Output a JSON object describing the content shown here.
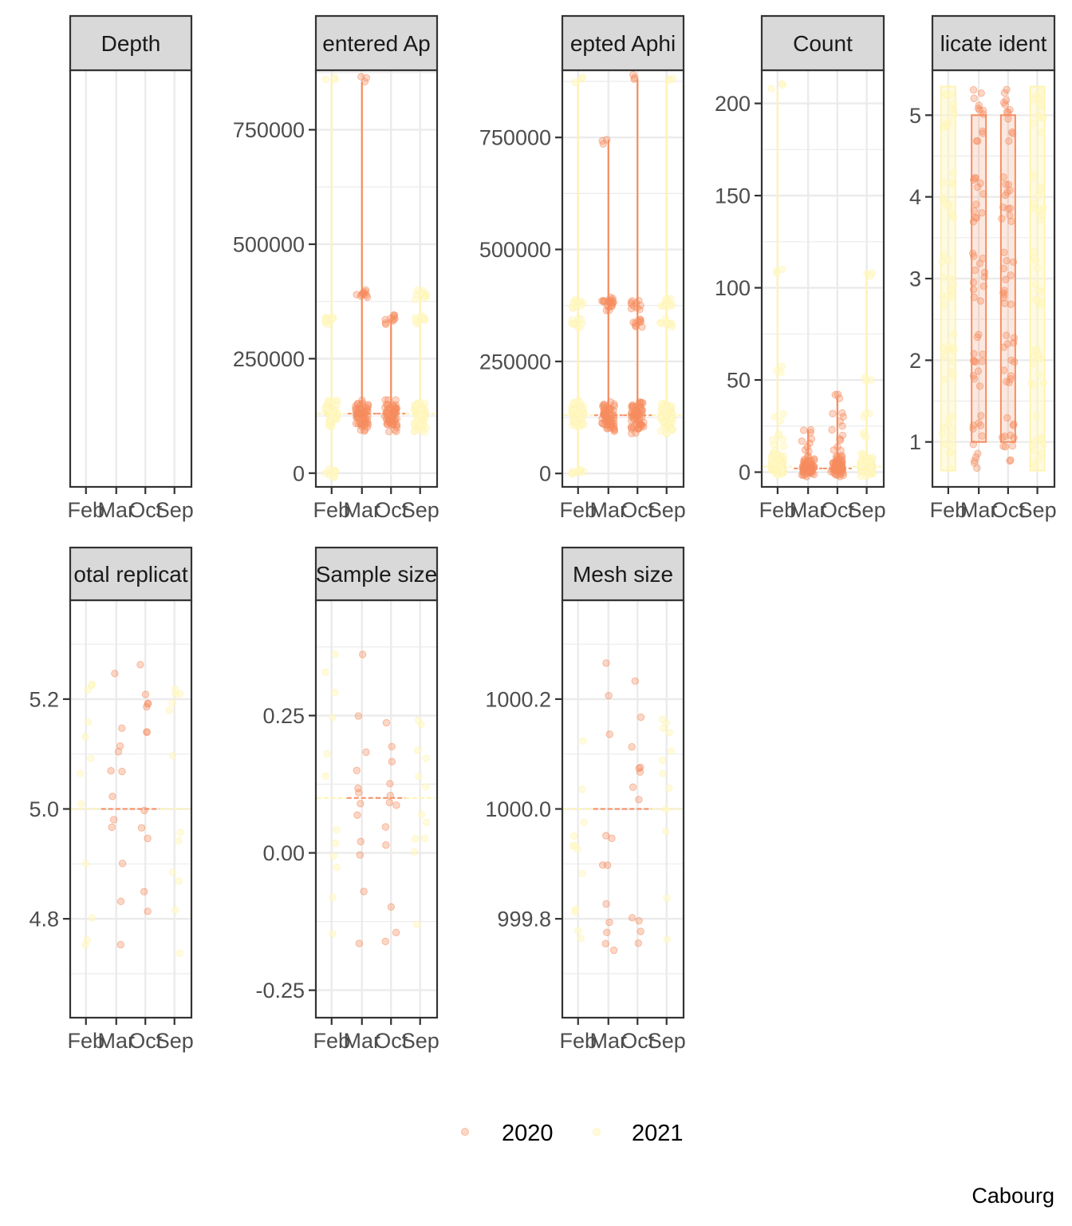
{
  "chart_data": {
    "type": "scatter",
    "layout": "faceted jitter + violin panels",
    "caption": "Cabourg",
    "legend": {
      "position": "bottom",
      "entries": [
        {
          "label": "2020",
          "color": "#f68d5f"
        },
        {
          "label": "2021",
          "color": "#fff8c4"
        }
      ]
    },
    "x_categories": [
      "Feb",
      "Mar",
      "Oct",
      "Sep"
    ],
    "x_tick_labels": [
      "Feb",
      "Mar",
      "Oct",
      "Sep"
    ],
    "category_year": [
      "2021",
      "2020",
      "2020",
      "2021"
    ],
    "colors": {
      "2020": "#f68d5f",
      "2021": "#fff8c4",
      "grid": "#ebebeb",
      "strip_bg": "#d9d9d9",
      "border": "#333333"
    },
    "panels": [
      {
        "strip": "Depth",
        "row": 0,
        "col": 0,
        "yticks": [],
        "ylim": [
          0,
          1
        ],
        "empty": true
      },
      {
        "strip": "entered Ap",
        "row": 0,
        "col": 1,
        "ylim": [
          -30000,
          880000
        ],
        "yticks": [
          0,
          250000,
          500000,
          750000
        ],
        "ytick_labels": [
          "0",
          "250000",
          "500000",
          "750000"
        ],
        "y_minor": [
          125000,
          375000,
          625000,
          875000
        ],
        "median": [
          130000,
          130000,
          130000,
          130000
        ],
        "range": [
          [
            0,
            860000
          ],
          [
            100000,
            855000
          ],
          [
            100000,
            335000
          ],
          [
            100000,
            390000
          ]
        ],
        "violin": "line",
        "point_values": [
          [
            0,
            110000,
            125000,
            130000,
            140000,
            150000,
            330000,
            860000
          ],
          [
            100000,
            110000,
            125000,
            130000,
            140000,
            150000,
            390000,
            855000
          ],
          [
            100000,
            110000,
            125000,
            130000,
            140000,
            150000,
            335000
          ],
          [
            100000,
            110000,
            125000,
            130000,
            140000,
            150000,
            335000,
            390000
          ]
        ]
      },
      {
        "strip": "epted Aphi",
        "row": 0,
        "col": 2,
        "ylim": [
          -30000,
          900000
        ],
        "yticks": [
          0,
          250000,
          500000,
          750000
        ],
        "ytick_labels": [
          "0",
          "250000",
          "500000",
          "750000"
        ],
        "y_minor": [
          125000,
          375000,
          625000,
          875000
        ],
        "median": [
          130000,
          130000,
          130000,
          130000
        ],
        "range": [
          [
            0,
            880000
          ],
          [
            100000,
            745000
          ],
          [
            100000,
            880000
          ],
          [
            100000,
            880000
          ]
        ],
        "violin": "line",
        "point_values": [
          [
            0,
            110000,
            125000,
            130000,
            140000,
            150000,
            335000,
            380000,
            880000
          ],
          [
            100000,
            110000,
            125000,
            130000,
            140000,
            150000,
            375000,
            385000,
            745000
          ],
          [
            100000,
            110000,
            125000,
            130000,
            140000,
            150000,
            335000,
            375000,
            880000
          ],
          [
            100000,
            110000,
            125000,
            130000,
            140000,
            150000,
            335000,
            380000,
            880000
          ]
        ]
      },
      {
        "strip": "Count",
        "row": 0,
        "col": 3,
        "ylim": [
          -8,
          218
        ],
        "yticks": [
          0,
          50,
          100,
          150,
          200
        ],
        "ytick_labels": [
          "0",
          "50",
          "100",
          "150",
          "200"
        ],
        "y_minor": [
          25,
          75,
          125,
          175
        ],
        "median": [
          3,
          2,
          2,
          3
        ],
        "range": [
          [
            0,
            208
          ],
          [
            0,
            23
          ],
          [
            0,
            40
          ],
          [
            0,
            108
          ]
        ],
        "violin": "line",
        "point_values": [
          [
            0,
            1,
            2,
            3,
            4,
            5,
            6,
            8,
            10,
            15,
            20,
            30,
            55,
            110,
            208
          ],
          [
            0,
            1,
            2,
            3,
            4,
            5,
            8,
            12,
            18,
            23
          ],
          [
            0,
            1,
            2,
            3,
            4,
            6,
            9,
            12,
            18,
            25,
            30,
            40
          ],
          [
            0,
            1,
            2,
            3,
            4,
            5,
            6,
            10,
            20,
            30,
            50,
            108
          ]
        ]
      },
      {
        "strip": "licate ident",
        "row": 0,
        "col": 4,
        "ylim": [
          0.45,
          5.55
        ],
        "yticks": [
          1,
          2,
          3,
          4,
          5
        ],
        "ytick_labels": [
          "1",
          "2",
          "3",
          "4",
          "5"
        ],
        "y_minor": [
          1.5,
          2.5,
          3.5,
          4.5
        ],
        "median": [
          3,
          3,
          3,
          3
        ],
        "range": [
          [
            0.65,
            5.35
          ],
          [
            1,
            5
          ],
          [
            1,
            5
          ],
          [
            0.65,
            5.35
          ]
        ],
        "violin": "box",
        "point_values": [
          [
            1,
            2,
            3,
            4,
            5
          ],
          [
            1,
            2,
            3,
            4,
            5
          ],
          [
            1,
            2,
            3,
            4,
            5
          ],
          [
            1,
            2,
            3,
            4,
            5
          ]
        ],
        "point_spread": 0.33
      },
      {
        "strip": "otal replicat",
        "row": 1,
        "col": 0,
        "ylim": [
          4.62,
          5.38
        ],
        "yticks": [
          4.8,
          5.0,
          5.2
        ],
        "ytick_labels": [
          "4.8",
          "5.0",
          "5.2"
        ],
        "y_minor": [
          4.7,
          4.9,
          5.1,
          5.3
        ],
        "median": [
          5,
          5,
          5,
          5
        ],
        "range": [
          [
            4.64,
            5.36
          ],
          [
            4.64,
            5.36
          ],
          [
            4.64,
            5.36
          ],
          [
            4.64,
            5.36
          ]
        ],
        "violin": "dash",
        "point_values": [
          [
            5
          ],
          [
            5
          ],
          [
            5
          ],
          [
            5
          ]
        ],
        "point_spread": 0.35
      },
      {
        "strip": "Sample size",
        "row": 1,
        "col": 1,
        "ylim": [
          -0.3,
          0.46
        ],
        "yticks": [
          -0.25,
          0.0,
          0.25
        ],
        "ytick_labels": [
          "-0.25",
          "0.00",
          "0.25"
        ],
        "y_minor": [
          -0.125,
          0.125,
          0.375
        ],
        "median": [
          0.1,
          0.1,
          0.1,
          0.1
        ],
        "range": [
          [
            -0.26,
            0.44
          ],
          [
            -0.26,
            0.44
          ],
          [
            -0.26,
            0.44
          ],
          [
            -0.26,
            0.44
          ]
        ],
        "violin": "dash",
        "point_values": [
          [
            0.1
          ],
          [
            0.1
          ],
          [
            0.1
          ],
          [
            0.1
          ]
        ],
        "point_spread": 0.35
      },
      {
        "strip": "Mesh size",
        "row": 1,
        "col": 2,
        "ylim": [
          999.62,
          1000.38
        ],
        "yticks": [
          999.8,
          1000.0,
          1000.2
        ],
        "ytick_labels": [
          "999.8",
          "1000.0",
          "1000.2"
        ],
        "y_minor": [
          999.7,
          999.9,
          1000.1,
          1000.3
        ],
        "median": [
          1000,
          1000,
          1000,
          1000
        ],
        "range": [
          [
            999.64,
            1000.36
          ],
          [
            999.64,
            1000.36
          ],
          [
            999.64,
            1000.36
          ],
          [
            999.64,
            1000.36
          ]
        ],
        "violin": "dash",
        "point_values": [
          [
            1000
          ],
          [
            1000
          ],
          [
            1000
          ],
          [
            1000
          ]
        ],
        "point_spread": 0.35
      }
    ]
  }
}
